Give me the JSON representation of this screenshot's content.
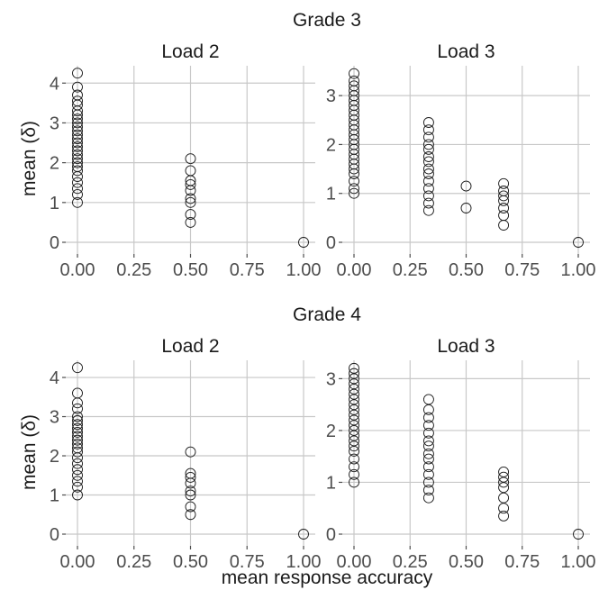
{
  "figure": {
    "xlabel": "mean response accuracy",
    "ylabel": "mean (δ)"
  },
  "grades": [
    {
      "title": "Grade 3",
      "panels": [
        "Load 2",
        "Load 3"
      ]
    },
    {
      "title": "Grade 4",
      "panels": [
        "Load 2",
        "Load 3"
      ]
    }
  ],
  "chart_data": [
    {
      "type": "scatter",
      "grade": "Grade 3",
      "title": "Load 2",
      "xlabel": "mean response accuracy",
      "ylabel": "mean (δ)",
      "xlim": [
        0,
        1
      ],
      "ylim": [
        0,
        4.3
      ],
      "xticks": [
        "0.00",
        "0.25",
        "0.50",
        "0.75",
        "1.00"
      ],
      "yticks": [
        "0",
        "1",
        "2",
        "3",
        "4"
      ],
      "grid": true,
      "points": [
        [
          0,
          1.0
        ],
        [
          0,
          1.2
        ],
        [
          0,
          1.35
        ],
        [
          0,
          1.5
        ],
        [
          0,
          1.65
        ],
        [
          0,
          1.8
        ],
        [
          0,
          1.9
        ],
        [
          0,
          2.0
        ],
        [
          0,
          2.1
        ],
        [
          0,
          2.2
        ],
        [
          0,
          2.3
        ],
        [
          0,
          2.4
        ],
        [
          0,
          2.5
        ],
        [
          0,
          2.6
        ],
        [
          0,
          2.7
        ],
        [
          0,
          2.8
        ],
        [
          0,
          2.9
        ],
        [
          0,
          3.0
        ],
        [
          0,
          3.1
        ],
        [
          0,
          3.2
        ],
        [
          0,
          3.3
        ],
        [
          0,
          3.45
        ],
        [
          0,
          3.55
        ],
        [
          0,
          3.7
        ],
        [
          0,
          3.9
        ],
        [
          0,
          4.25
        ],
        [
          0.5,
          0.5
        ],
        [
          0.5,
          0.7
        ],
        [
          0.5,
          1.0
        ],
        [
          0.5,
          1.1
        ],
        [
          0.5,
          1.3
        ],
        [
          0.5,
          1.45
        ],
        [
          0.5,
          1.55
        ],
        [
          0.5,
          1.8
        ],
        [
          0.5,
          2.1
        ],
        [
          1.0,
          0.0
        ]
      ]
    },
    {
      "type": "scatter",
      "grade": "Grade 3",
      "title": "Load 3",
      "xlabel": "mean response accuracy",
      "ylabel": "mean (δ)",
      "xlim": [
        0,
        1
      ],
      "ylim": [
        0,
        3.5
      ],
      "xticks": [
        "0.00",
        "0.25",
        "0.50",
        "0.75",
        "1.00"
      ],
      "yticks": [
        "0",
        "1",
        "2",
        "3"
      ],
      "grid": true,
      "points": [
        [
          0,
          1.0
        ],
        [
          0,
          1.1
        ],
        [
          0,
          1.25
        ],
        [
          0,
          1.4
        ],
        [
          0,
          1.5
        ],
        [
          0,
          1.6
        ],
        [
          0,
          1.7
        ],
        [
          0,
          1.8
        ],
        [
          0,
          1.9
        ],
        [
          0,
          2.0
        ],
        [
          0,
          2.1
        ],
        [
          0,
          2.2
        ],
        [
          0,
          2.3
        ],
        [
          0,
          2.4
        ],
        [
          0,
          2.5
        ],
        [
          0,
          2.6
        ],
        [
          0,
          2.7
        ],
        [
          0,
          2.8
        ],
        [
          0,
          2.9
        ],
        [
          0,
          3.0
        ],
        [
          0,
          3.1
        ],
        [
          0,
          3.2
        ],
        [
          0,
          3.3
        ],
        [
          0,
          3.45
        ],
        [
          0.333,
          0.65
        ],
        [
          0.333,
          0.8
        ],
        [
          0.333,
          0.95
        ],
        [
          0.333,
          1.1
        ],
        [
          0.333,
          1.25
        ],
        [
          0.333,
          1.4
        ],
        [
          0.333,
          1.5
        ],
        [
          0.333,
          1.65
        ],
        [
          0.333,
          1.75
        ],
        [
          0.333,
          1.9
        ],
        [
          0.333,
          2.0
        ],
        [
          0.333,
          2.15
        ],
        [
          0.333,
          2.3
        ],
        [
          0.333,
          2.45
        ],
        [
          0.5,
          0.7
        ],
        [
          0.5,
          1.15
        ],
        [
          0.667,
          0.35
        ],
        [
          0.667,
          0.55
        ],
        [
          0.667,
          0.7
        ],
        [
          0.667,
          0.85
        ],
        [
          0.667,
          0.95
        ],
        [
          0.667,
          1.05
        ],
        [
          0.667,
          1.2
        ],
        [
          1.0,
          0.0
        ]
      ]
    },
    {
      "type": "scatter",
      "grade": "Grade 4",
      "title": "Load 2",
      "xlabel": "mean response accuracy",
      "ylabel": "mean (δ)",
      "xlim": [
        0,
        1
      ],
      "ylim": [
        0,
        4.3
      ],
      "xticks": [
        "0.00",
        "0.25",
        "0.50",
        "0.75",
        "1.00"
      ],
      "yticks": [
        "0",
        "1",
        "2",
        "3",
        "4"
      ],
      "grid": true,
      "points": [
        [
          0,
          1.0
        ],
        [
          0,
          1.2
        ],
        [
          0,
          1.35
        ],
        [
          0,
          1.5
        ],
        [
          0,
          1.65
        ],
        [
          0,
          1.8
        ],
        [
          0,
          1.95
        ],
        [
          0,
          2.1
        ],
        [
          0,
          2.2
        ],
        [
          0,
          2.3
        ],
        [
          0,
          2.4
        ],
        [
          0,
          2.5
        ],
        [
          0,
          2.6
        ],
        [
          0,
          2.7
        ],
        [
          0,
          2.8
        ],
        [
          0,
          2.9
        ],
        [
          0,
          3.0
        ],
        [
          0,
          3.2
        ],
        [
          0,
          3.35
        ],
        [
          0,
          3.6
        ],
        [
          0,
          4.25
        ],
        [
          0.5,
          0.5
        ],
        [
          0.5,
          0.7
        ],
        [
          0.5,
          1.0
        ],
        [
          0.5,
          1.1
        ],
        [
          0.5,
          1.3
        ],
        [
          0.5,
          1.45
        ],
        [
          0.5,
          1.55
        ],
        [
          0.5,
          2.1
        ],
        [
          1.0,
          0.0
        ]
      ]
    },
    {
      "type": "scatter",
      "grade": "Grade 4",
      "title": "Load 3",
      "xlabel": "mean response accuracy",
      "ylabel": "mean (δ)",
      "xlim": [
        0,
        1
      ],
      "ylim": [
        0,
        3.25
      ],
      "xticks": [
        "0.00",
        "0.25",
        "0.50",
        "0.75",
        "1.00"
      ],
      "yticks": [
        "0",
        "1",
        "2",
        "3"
      ],
      "grid": true,
      "points": [
        [
          0,
          1.0
        ],
        [
          0,
          1.15
        ],
        [
          0,
          1.3
        ],
        [
          0,
          1.45
        ],
        [
          0,
          1.6
        ],
        [
          0,
          1.7
        ],
        [
          0,
          1.8
        ],
        [
          0,
          1.9
        ],
        [
          0,
          2.0
        ],
        [
          0,
          2.1
        ],
        [
          0,
          2.2
        ],
        [
          0,
          2.3
        ],
        [
          0,
          2.4
        ],
        [
          0,
          2.5
        ],
        [
          0,
          2.6
        ],
        [
          0,
          2.7
        ],
        [
          0,
          2.8
        ],
        [
          0,
          2.9
        ],
        [
          0,
          3.0
        ],
        [
          0,
          3.1
        ],
        [
          0,
          3.2
        ],
        [
          0.333,
          0.7
        ],
        [
          0.333,
          0.85
        ],
        [
          0.333,
          1.0
        ],
        [
          0.333,
          1.15
        ],
        [
          0.333,
          1.3
        ],
        [
          0.333,
          1.45
        ],
        [
          0.333,
          1.55
        ],
        [
          0.333,
          1.7
        ],
        [
          0.333,
          1.8
        ],
        [
          0.333,
          1.95
        ],
        [
          0.333,
          2.1
        ],
        [
          0.333,
          2.25
        ],
        [
          0.333,
          2.4
        ],
        [
          0.333,
          2.6
        ],
        [
          0.667,
          0.35
        ],
        [
          0.667,
          0.5
        ],
        [
          0.667,
          0.7
        ],
        [
          0.667,
          0.9
        ],
        [
          0.667,
          1.0
        ],
        [
          0.667,
          1.1
        ],
        [
          0.667,
          1.2
        ],
        [
          1.0,
          0.0
        ]
      ]
    }
  ]
}
